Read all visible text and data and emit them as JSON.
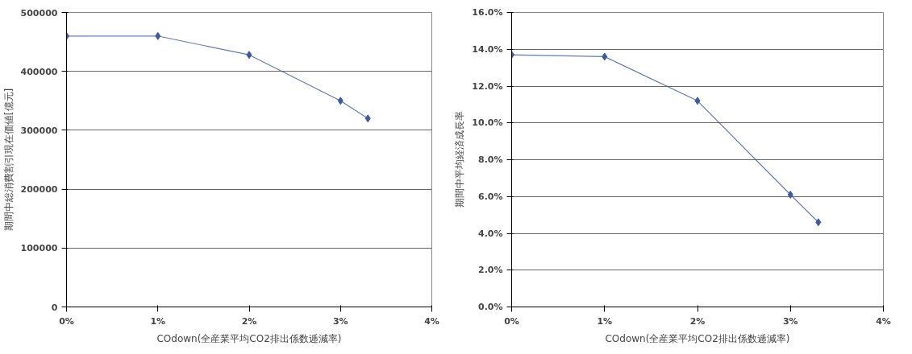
{
  "chart_data": [
    {
      "type": "line",
      "xlabel": "COdown(全産業平均CO2排出係数逓減率)",
      "ylabel": "期間中総消費割引現在価値[億元]",
      "x": [
        0,
        1,
        2,
        3,
        3.3
      ],
      "series": [
        {
          "color": "#3a5aa8",
          "values": [
            460000,
            460000,
            428000,
            350000,
            320000
          ]
        }
      ],
      "xlim": [
        0,
        4
      ],
      "xticks": [
        {
          "value": 0,
          "label": "0%"
        },
        {
          "value": 1,
          "label": "1%"
        },
        {
          "value": 2,
          "label": "2%"
        },
        {
          "value": 3,
          "label": "3%"
        },
        {
          "value": 4,
          "label": "4%"
        }
      ],
      "ylim": [
        0,
        500000
      ],
      "yticks": [
        0,
        100000,
        200000,
        300000,
        400000,
        500000
      ],
      "grid": "y",
      "marker": "diamond",
      "line_style": "solid"
    },
    {
      "type": "line",
      "xlabel": "COdown(全産業平均CO2排出係数逓減率)",
      "ylabel": "期間中平均経済成長率",
      "x": [
        0,
        1,
        2,
        3,
        3.3
      ],
      "series": [
        {
          "color": "#3a5aa8",
          "values": [
            13.7,
            13.6,
            11.2,
            6.1,
            4.6
          ]
        }
      ],
      "xlim": [
        0,
        4
      ],
      "xticks": [
        {
          "value": 0,
          "label": "0%"
        },
        {
          "value": 1,
          "label": "1%"
        },
        {
          "value": 2,
          "label": "2%"
        },
        {
          "value": 3,
          "label": "3%"
        },
        {
          "value": 4,
          "label": "4%"
        }
      ],
      "ylim": [
        0,
        16
      ],
      "yticks": [
        {
          "value": 0,
          "label": "0.0%"
        },
        {
          "value": 2,
          "label": "2.0%"
        },
        {
          "value": 4,
          "label": "4.0%"
        },
        {
          "value": 6,
          "label": "6.0%"
        },
        {
          "value": 8,
          "label": "8.0%"
        },
        {
          "value": 10,
          "label": "10.0%"
        },
        {
          "value": 12,
          "label": "12.0%"
        },
        {
          "value": 14,
          "label": "14.0%"
        },
        {
          "value": 16,
          "label": "16.0%"
        }
      ],
      "grid": "y",
      "marker": "diamond",
      "line_style": "solid"
    }
  ]
}
